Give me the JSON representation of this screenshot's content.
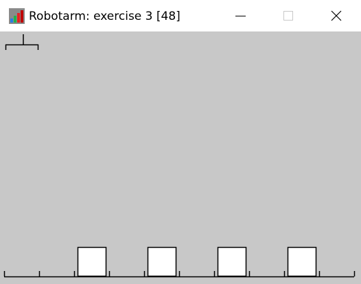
{
  "window": {
    "title": "Robotarm: exercise 3 [48]",
    "app_icon": "bar-chart-app-icon"
  },
  "controls": {
    "minimize_icon": "minimize-icon",
    "maximize_icon": "maximize-icon",
    "close_icon": "close-icon"
  },
  "scene": {
    "background_color": "#c8c8c8",
    "line_color": "#000000",
    "block_fill": "#ffffff",
    "slot_count": 10,
    "arm_slot": 0,
    "occupied_slots": [
      2,
      4,
      6,
      8
    ]
  }
}
